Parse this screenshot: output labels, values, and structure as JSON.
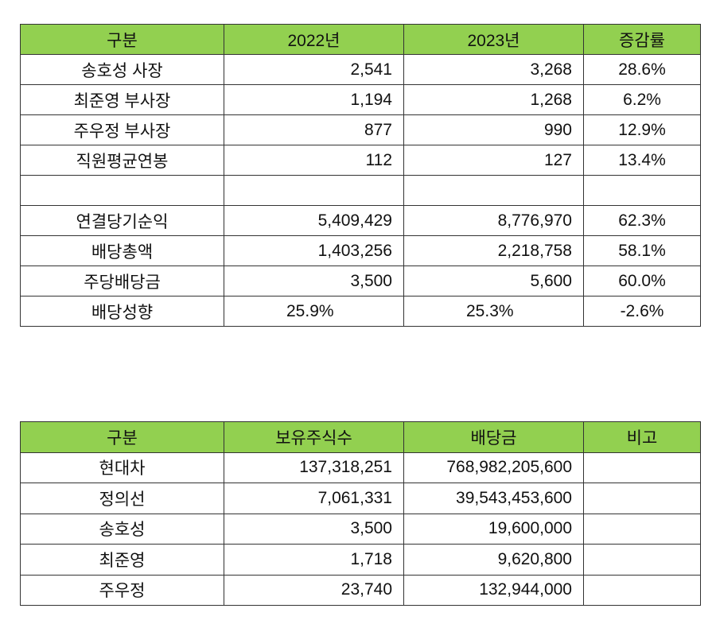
{
  "table1": {
    "headers": [
      "구분",
      "2022년",
      "2023년",
      "증감률"
    ],
    "rows": [
      [
        "송호성 사장",
        "2,541",
        "3,268",
        "28.6%"
      ],
      [
        "최준영 부사장",
        "1,194",
        "1,268",
        "6.2%"
      ],
      [
        "주우정 부사장",
        "877",
        "990",
        "12.9%"
      ],
      [
        "직원평균연봉",
        "112",
        "127",
        "13.4%"
      ],
      [
        "",
        "",
        "",
        ""
      ],
      [
        "연결당기순익",
        "5,409,429",
        "8,776,970",
        "62.3%"
      ],
      [
        "배당총액",
        "1,403,256",
        "2,218,758",
        "58.1%"
      ],
      [
        "주당배당금",
        "3,500",
        "5,600",
        "60.0%"
      ],
      [
        "배당성향",
        "25.9%",
        "25.3%",
        "-2.6%"
      ]
    ]
  },
  "table2": {
    "headers": [
      "구분",
      "보유주식수",
      "배당금",
      "비고"
    ],
    "rows": [
      [
        "현대차",
        "137,318,251",
        "768,982,205,600",
        ""
      ],
      [
        "정의선",
        "7,061,331",
        "39,543,453,600",
        ""
      ],
      [
        "송호성",
        "3,500",
        "19,600,000",
        ""
      ],
      [
        "최준영",
        "1,718",
        "9,620,800",
        ""
      ],
      [
        "주우정",
        "23,740",
        "132,944,000",
        ""
      ]
    ]
  },
  "colors": {
    "header_bg": "#92d050",
    "border": "#333333"
  }
}
